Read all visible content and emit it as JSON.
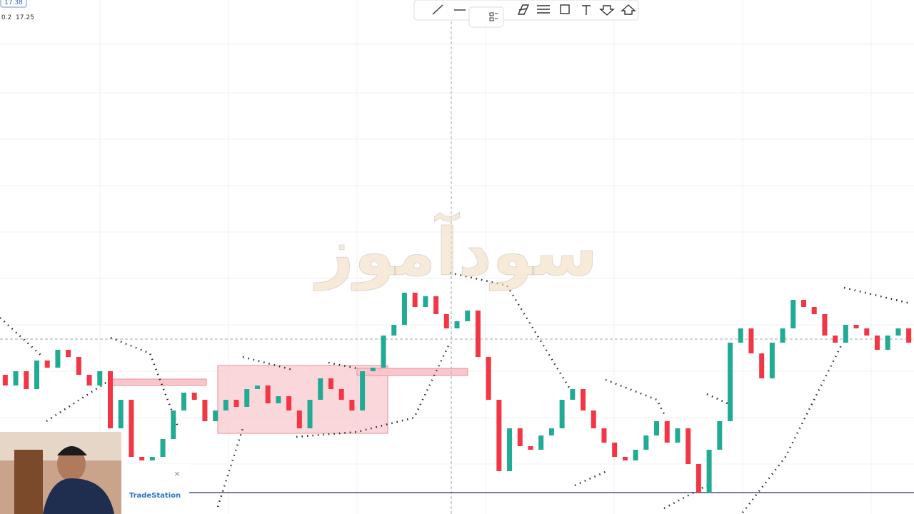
{
  "header": {
    "price_box": "17.38",
    "legend": [
      "0.2",
      "17.25"
    ]
  },
  "watermark": "سودآموز",
  "ad": {
    "brand": "TradeStation",
    "close": "×"
  },
  "chart_data": {
    "type": "candlestick",
    "open": 17.33,
    "close": [
      17.315,
      17.335,
      17.31,
      17.35,
      17.34,
      17.365,
      17.355,
      17.33,
      17.315,
      17.335,
      17.255,
      17.295,
      17.215,
      17.21,
      17.215,
      17.24,
      17.28,
      17.305,
      17.295,
      17.265,
      17.28,
      17.295,
      17.285,
      17.31,
      17.315,
      17.29,
      17.3,
      17.28,
      17.255,
      17.295,
      17.325,
      17.31,
      17.295,
      17.28,
      17.335,
      17.34,
      17.385,
      17.4,
      17.445,
      17.425,
      17.44,
      17.415,
      17.395,
      17.405,
      17.42,
      17.355,
      17.295,
      17.195,
      17.255,
      17.23,
      17.225,
      17.245,
      17.255,
      17.295,
      17.31,
      17.28,
      17.255,
      17.235,
      17.215,
      17.21,
      17.225,
      17.245,
      17.265,
      17.235,
      17.255,
      17.205,
      17.165,
      17.225,
      17.265,
      17.375,
      17.395,
      17.36,
      17.325,
      17.375,
      17.395,
      17.435,
      17.425,
      17.415,
      17.385,
      17.375,
      17.4,
      17.395,
      17.385,
      17.365,
      17.385,
      17.395,
      17.375
    ],
    "ylim": [
      17.135,
      17.855
    ],
    "colors": {
      "up": "#22ab94",
      "down": "#f23645"
    }
  }
}
